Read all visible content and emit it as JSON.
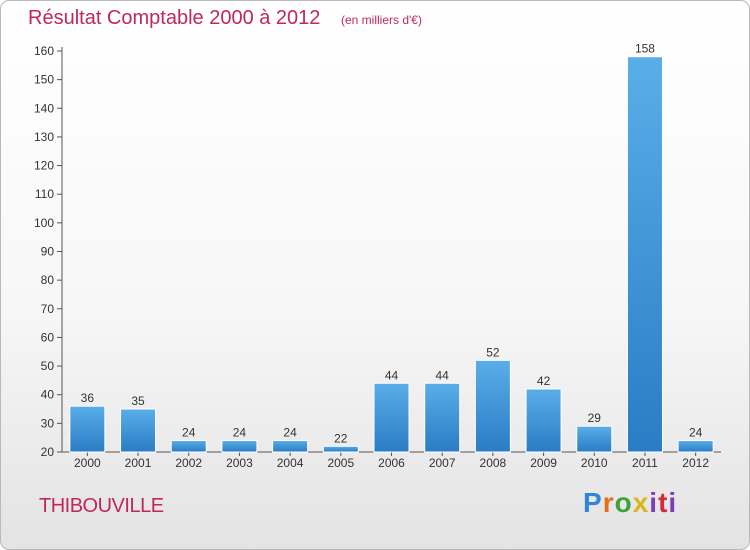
{
  "header": {
    "title": "Résultat Comptable 2000 à 2012",
    "subtitle": "(en milliers d'€)"
  },
  "footer": {
    "place": "THIBOUVILLE",
    "logo": "Proxiti"
  },
  "colors": {
    "title": "#c0285a",
    "bar_top": "#5aaee8",
    "bar_bottom": "#2a7cc4",
    "axis": "#555555"
  },
  "chart_data": {
    "type": "bar",
    "categories": [
      "2000",
      "2001",
      "2002",
      "2003",
      "2004",
      "2005",
      "2006",
      "2007",
      "2008",
      "2009",
      "2010",
      "2011",
      "2012"
    ],
    "values": [
      36,
      35,
      24,
      24,
      24,
      22,
      44,
      44,
      52,
      42,
      29,
      158,
      24
    ],
    "yticks": [
      20,
      30,
      40,
      50,
      60,
      70,
      80,
      90,
      100,
      110,
      120,
      130,
      140,
      150,
      160
    ],
    "ylim": [
      20,
      160
    ],
    "grid": false,
    "legend": "none"
  }
}
